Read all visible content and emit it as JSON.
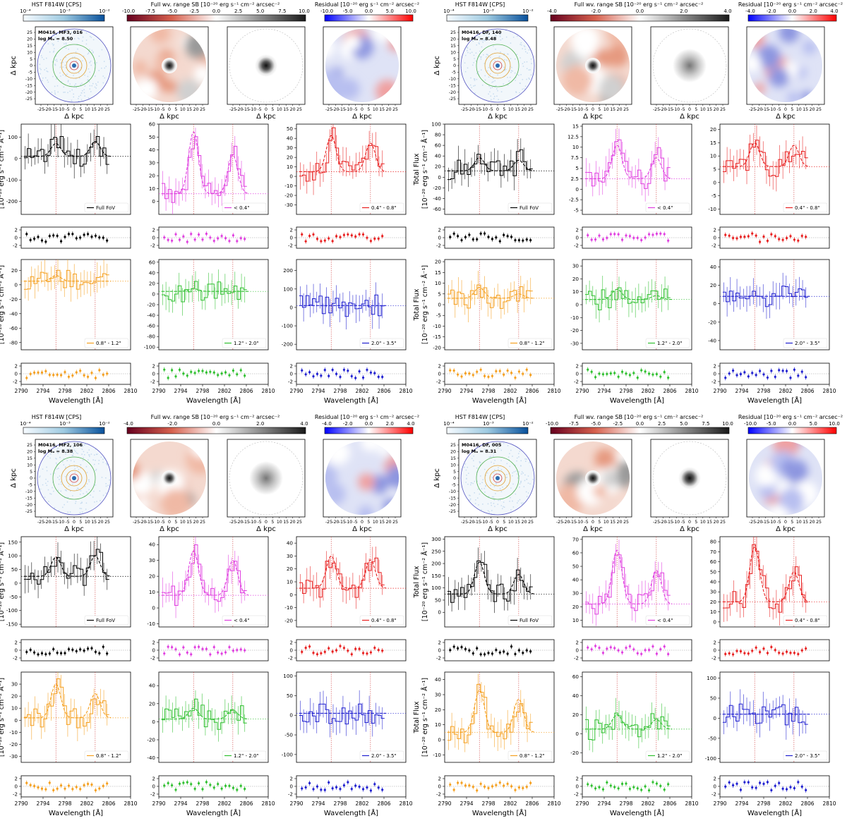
{
  "figure": {
    "cbar_titles": {
      "hst": "HST F814W [CPS]",
      "sb": "Full wv. range SB [10⁻²⁰ erg s⁻¹ cm⁻² arcsec⁻²",
      "res": "Residual [10⁻²⁰ erg s⁻¹ cm⁻² arcsec⁻²"
    },
    "hst_ticks": [
      "10⁻⁴",
      "10⁻³",
      "10⁻²"
    ],
    "image_axis_label": "Δ kpc",
    "flux_label_line1": "Total Flux",
    "flux_label_line2": "[10⁻²⁰ erg s⁻¹ cm⁻² Å⁻¹]",
    "xlabel": "Wavelength [Å]",
    "wave_ticks": [
      2790,
      2794,
      2798,
      2802,
      2806,
      2810
    ],
    "img_ticks": [
      -25,
      -20,
      -15,
      -10,
      -5,
      0,
      5,
      10,
      15,
      20,
      25
    ],
    "bin_labels": [
      "Full FoV",
      "< 0.4\"",
      "0.4\" - 0.8\"",
      "0.8\" - 1.2\"",
      "1.2\" - 2.0\"",
      "2.0\" - 3.5\""
    ],
    "bin_colors": [
      "#000000",
      "#e040e0",
      "#e82020",
      "#f5a020",
      "#30c030",
      "#2020d0"
    ],
    "line_waves": [
      2796.35,
      2803.53
    ],
    "colors": {
      "mgline": "#d04040",
      "ring_inner": "#d04040",
      "ring_mid": "#e0a030",
      "ring_green": "#50b050",
      "ring_outer": "#5050c0"
    }
  },
  "galaxies": [
    {
      "id": "M0416, MF3, 016",
      "mass": "log Mₒ = 8.50",
      "sb_ticks": [
        "-10.0",
        "-7.5",
        "-5.0",
        "-2.5",
        "0.0",
        "2.5",
        "5.0",
        "7.5",
        "10.0"
      ],
      "res_ticks": [
        "-10.0",
        "-5.0",
        "0.0",
        "5.0",
        "10.0"
      ],
      "panels": [
        {
          "bin": 0,
          "yticks": [
            -200,
            -100,
            0,
            100
          ],
          "ylim": [
            -260,
            160
          ],
          "peaks": [
            60,
            70
          ],
          "base": 10,
          "res_ticks": [
            2,
            0,
            -2
          ]
        },
        {
          "bin": 1,
          "yticks": [
            0,
            10,
            20,
            30,
            40,
            50,
            60
          ],
          "ylim": [
            -10,
            60
          ],
          "peaks": [
            48,
            30
          ],
          "base": 6,
          "res_ticks": [
            2,
            0,
            -2
          ]
        },
        {
          "bin": 2,
          "yticks": [
            -30,
            -20,
            -10,
            0,
            10,
            20,
            30,
            40,
            50
          ],
          "ylim": [
            -40,
            55
          ],
          "peaks": [
            38,
            30
          ],
          "base": 5,
          "res_ticks": [
            2,
            0,
            -2
          ]
        },
        {
          "bin": 3,
          "yticks": [
            -80,
            -60,
            -40,
            -20,
            0,
            20
          ],
          "ylim": [
            -90,
            35
          ],
          "peaks": [
            8,
            0
          ],
          "base": 5,
          "res_ticks": [
            2,
            0,
            -2
          ]
        },
        {
          "bin": 4,
          "yticks": [
            -100,
            -80,
            -60,
            -40,
            -20,
            0,
            20,
            40,
            60
          ],
          "ylim": [
            -105,
            65
          ],
          "peaks": [
            5,
            0
          ],
          "base": 5,
          "res_ticks": [
            2,
            0,
            -2
          ]
        },
        {
          "bin": 5,
          "yticks": [
            -200,
            -100,
            0,
            100,
            200
          ],
          "ylim": [
            -230,
            260
          ],
          "peaks": [
            0,
            0
          ],
          "base": 10,
          "res_ticks": [
            2,
            0,
            -2
          ]
        }
      ]
    },
    {
      "id": "M0416, DF, 140",
      "mass": "log Mₒ = 8.48",
      "sb_ticks": [
        "-4.0",
        "-2.0",
        "0.0",
        "2.0",
        "4.0"
      ],
      "res_ticks": [
        "-4.0",
        "-2.0",
        "0.0",
        "2.0",
        "4.0"
      ],
      "panels": [
        {
          "bin": 0,
          "yticks": [
            -60,
            -40,
            -20,
            0,
            20,
            40,
            60,
            80,
            100
          ],
          "ylim": [
            -70,
            100
          ],
          "peaks": [
            25,
            20
          ],
          "base": 12,
          "res_ticks": [
            2,
            0,
            -2
          ]
        },
        {
          "bin": 1,
          "yticks": [
            -5.0,
            -2.5,
            0.0,
            2.5,
            5.0,
            7.5,
            10.0,
            12.5,
            15.0
          ],
          "ylim": [
            -6,
            15.5
          ],
          "peaks": [
            8,
            5
          ],
          "base": 2.5,
          "res_ticks": [
            2,
            0,
            -2
          ]
        },
        {
          "bin": 2,
          "yticks": [
            -10,
            -5,
            0,
            5,
            10,
            15,
            20
          ],
          "ylim": [
            -12,
            22
          ],
          "peaks": [
            9,
            8
          ],
          "base": 6,
          "res_ticks": [
            2,
            0,
            -2
          ]
        },
        {
          "bin": 3,
          "yticks": [
            -20,
            -15,
            -10,
            -5,
            0,
            5,
            10,
            15,
            20
          ],
          "ylim": [
            -21,
            21
          ],
          "peaks": [
            5,
            2
          ],
          "base": 3,
          "res_ticks": [
            2,
            0,
            -2
          ]
        },
        {
          "bin": 4,
          "yticks": [
            -30,
            -20,
            -10,
            0,
            10,
            20,
            30
          ],
          "ylim": [
            -35,
            35
          ],
          "peaks": [
            8,
            3
          ],
          "base": 4,
          "res_ticks": [
            2,
            0,
            -2
          ]
        },
        {
          "bin": 5,
          "yticks": [
            -40,
            -20,
            0,
            20,
            40
          ],
          "ylim": [
            -50,
            48
          ],
          "peaks": [
            0,
            0
          ],
          "base": 8,
          "res_ticks": [
            2,
            0,
            -2
          ]
        }
      ]
    },
    {
      "id": "M0416, MF2, 106",
      "mass": "log Mₒ = 8.38",
      "sb_ticks": [
        "-4.0",
        "-2.0",
        "0.0",
        "2.0",
        "4.0"
      ],
      "res_ticks": [
        "-4.0",
        "-2.0",
        "0.0",
        "2.0",
        "4.0"
      ],
      "panels": [
        {
          "bin": 0,
          "yticks": [
            -150,
            -100,
            -50,
            0,
            50,
            100,
            150
          ],
          "ylim": [
            -160,
            170
          ],
          "peaks": [
            70,
            75
          ],
          "base": 25,
          "res_ticks": [
            2,
            0,
            -2
          ]
        },
        {
          "bin": 1,
          "yticks": [
            -10,
            0,
            10,
            20,
            30,
            40
          ],
          "ylim": [
            -12,
            45
          ],
          "peaks": [
            28,
            22
          ],
          "base": 8,
          "res_ticks": [
            2,
            0,
            -2
          ]
        },
        {
          "bin": 2,
          "yticks": [
            -20,
            -10,
            0,
            10,
            20,
            30,
            40
          ],
          "ylim": [
            -25,
            45
          ],
          "peaks": [
            25,
            22
          ],
          "base": 5,
          "res_ticks": [
            2,
            0,
            -2
          ]
        },
        {
          "bin": 3,
          "yticks": [
            -30,
            -20,
            -10,
            0,
            10,
            20,
            30
          ],
          "ylim": [
            -35,
            40
          ],
          "peaks": [
            28,
            20
          ],
          "base": 2,
          "res_ticks": [
            2,
            0,
            -2
          ]
        },
        {
          "bin": 4,
          "yticks": [
            -40,
            -20,
            0,
            20,
            40
          ],
          "ylim": [
            -45,
            55
          ],
          "peaks": [
            12,
            10
          ],
          "base": 3,
          "res_ticks": [
            2,
            0,
            -2
          ]
        },
        {
          "bin": 5,
          "yticks": [
            -100,
            -50,
            0,
            50,
            100
          ],
          "ylim": [
            -120,
            110
          ],
          "peaks": [
            0,
            0
          ],
          "base": 5,
          "res_ticks": [
            2,
            0,
            -2
          ]
        }
      ]
    },
    {
      "id": "M0416, DF, 005",
      "mass": "log Mₒ = 8.31",
      "sb_ticks": [
        "-10.0",
        "-7.5",
        "-5.0",
        "-2.5",
        "0.0",
        "2.5",
        "5.0",
        "7.5",
        "10.0"
      ],
      "res_ticks": [
        "-10.0",
        "-5.0",
        "0.0",
        "5.0",
        "10.0"
      ],
      "panels": [
        {
          "bin": 0,
          "yticks": [
            0,
            50,
            100,
            150,
            200,
            250,
            300
          ],
          "ylim": [
            -60,
            310
          ],
          "peaks": [
            130,
            80
          ],
          "base": 75,
          "res_ticks": [
            2,
            0,
            -2
          ]
        },
        {
          "bin": 1,
          "yticks": [
            10,
            20,
            30,
            40,
            50,
            60,
            70
          ],
          "ylim": [
            5,
            72
          ],
          "peaks": [
            40,
            25
          ],
          "base": 22,
          "res_ticks": [
            2,
            0,
            -2
          ]
        },
        {
          "bin": 2,
          "yticks": [
            0,
            10,
            20,
            30,
            40,
            50,
            60,
            70,
            80
          ],
          "ylim": [
            -5,
            85
          ],
          "peaks": [
            55,
            30
          ],
          "base": 20,
          "res_ticks": [
            2,
            0,
            -2
          ]
        },
        {
          "bin": 3,
          "yticks": [
            -10,
            0,
            10,
            20,
            30,
            40
          ],
          "ylim": [
            -15,
            45
          ],
          "peaks": [
            28,
            22
          ],
          "base": 5,
          "res_ticks": [
            2,
            0,
            -2
          ]
        },
        {
          "bin": 4,
          "yticks": [
            -20,
            0,
            20,
            40,
            60
          ],
          "ylim": [
            -30,
            65
          ],
          "peaks": [
            15,
            10
          ],
          "base": 5,
          "res_ticks": [
            2,
            0,
            -2
          ]
        },
        {
          "bin": 5,
          "yticks": [
            -100,
            -50,
            0,
            50,
            100
          ],
          "ylim": [
            -110,
            115
          ],
          "peaks": [
            0,
            0
          ],
          "base": 10,
          "res_ticks": [
            2,
            0,
            -2
          ]
        }
      ]
    }
  ],
  "chart_data": [
    {
      "type": "line",
      "panel": "M0416 MF3 016 Full FoV",
      "series": [
        {
          "name": "Full FoV",
          "x": [
            2791,
            2794,
            2796.35,
            2799,
            2803.53,
            2806
          ],
          "y": [
            10,
            15,
            70,
            15,
            80,
            10
          ]
        }
      ]
    },
    {
      "type": "line",
      "panel": "M0416 MF3 016 <0.4\"",
      "series": [
        {
          "name": "< 0.4\"",
          "x": [
            2791,
            2794,
            2796.35,
            2799,
            2803.53,
            2806
          ],
          "y": [
            6,
            8,
            54,
            8,
            36,
            6
          ]
        }
      ]
    },
    {
      "type": "line",
      "panel": "M0416 MF3 016 0.4\"-0.8\"",
      "series": [
        {
          "name": "0.4\" - 0.8\"",
          "x": [
            2791,
            2794,
            2796.35,
            2799,
            2803.53,
            2806
          ],
          "y": [
            5,
            8,
            43,
            8,
            35,
            5
          ]
        }
      ]
    },
    {
      "type": "line",
      "panel": "M0416 DF 140 Full FoV",
      "series": [
        {
          "name": "Full FoV",
          "x": [
            2791,
            2794,
            2796.35,
            2799,
            2803.53,
            2806
          ],
          "y": [
            12,
            20,
            37,
            20,
            32,
            12
          ]
        }
      ]
    },
    {
      "type": "line",
      "panel": "M0416 MF2 106 Full FoV",
      "series": [
        {
          "name": "Full FoV",
          "x": [
            2791,
            2794,
            2796.35,
            2799,
            2803.53,
            2806
          ],
          "y": [
            25,
            40,
            95,
            35,
            100,
            25
          ]
        }
      ]
    },
    {
      "type": "line",
      "panel": "M0416 DF 005 Full FoV",
      "series": [
        {
          "name": "Full FoV",
          "x": [
            2791,
            2794,
            2796.35,
            2799,
            2803.53,
            2806
          ],
          "y": [
            75,
            100,
            205,
            95,
            155,
            75
          ]
        }
      ]
    }
  ]
}
